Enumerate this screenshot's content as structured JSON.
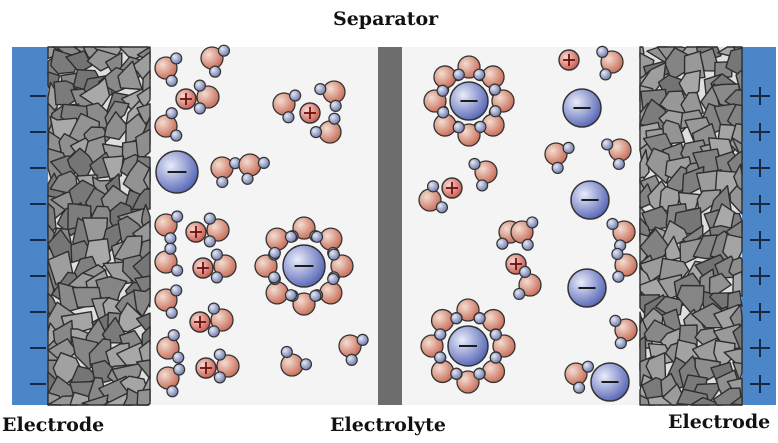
{
  "labels": {
    "separator": "Separator",
    "electrode_left": "Electrode",
    "electrolyte": "Electrolyte",
    "electrode_right": "Electrode"
  },
  "signs": {
    "negative": "−",
    "positive": "+"
  },
  "colors": {
    "electrode_bar": "#4a86c8",
    "carbon": "#8e8e8e",
    "separator": "#6d6d6d",
    "anion": "#6f7fc4",
    "cation": "#d2695e",
    "water_oxygen": "#d98a72",
    "water_hydrogen": "#7a86b5"
  }
}
